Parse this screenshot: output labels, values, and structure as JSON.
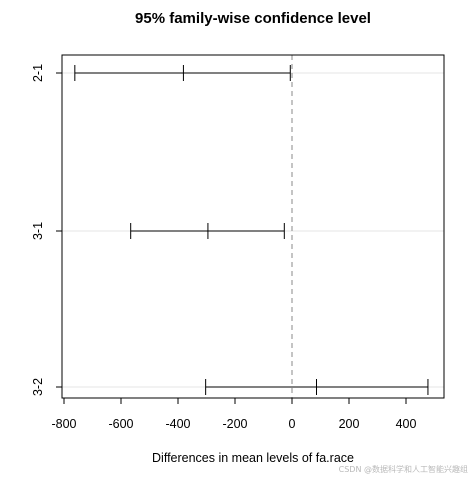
{
  "chart_data": {
    "type": "errorbar",
    "title": "95% family-wise confidence level",
    "xlabel": "Differences in mean levels of fa.race",
    "ylabel": "",
    "categories": [
      "2-1",
      "3-1",
      "3-2"
    ],
    "series": [
      {
        "comparison": "2-1",
        "diff": -381,
        "lwr": -762,
        "upr": -6
      },
      {
        "comparison": "3-1",
        "diff": -295,
        "lwr": -566,
        "upr": -27
      },
      {
        "comparison": "3-2",
        "diff": 86,
        "lwr": -303,
        "upr": 477
      }
    ],
    "xlim": [
      -800,
      500
    ],
    "xticks": [
      -800,
      -600,
      -400,
      -200,
      0,
      200,
      400
    ],
    "xtick_labels": [
      "-800",
      "-600",
      "-400",
      "-200",
      "0",
      "200",
      "400"
    ],
    "reference_line": 0,
    "grid": true
  },
  "watermark": "CSDN @数据科学和人工智能兴趣组",
  "colors": {
    "reference_line": "#888888",
    "grid": "#e6e6e6",
    "bars": "#000000"
  }
}
